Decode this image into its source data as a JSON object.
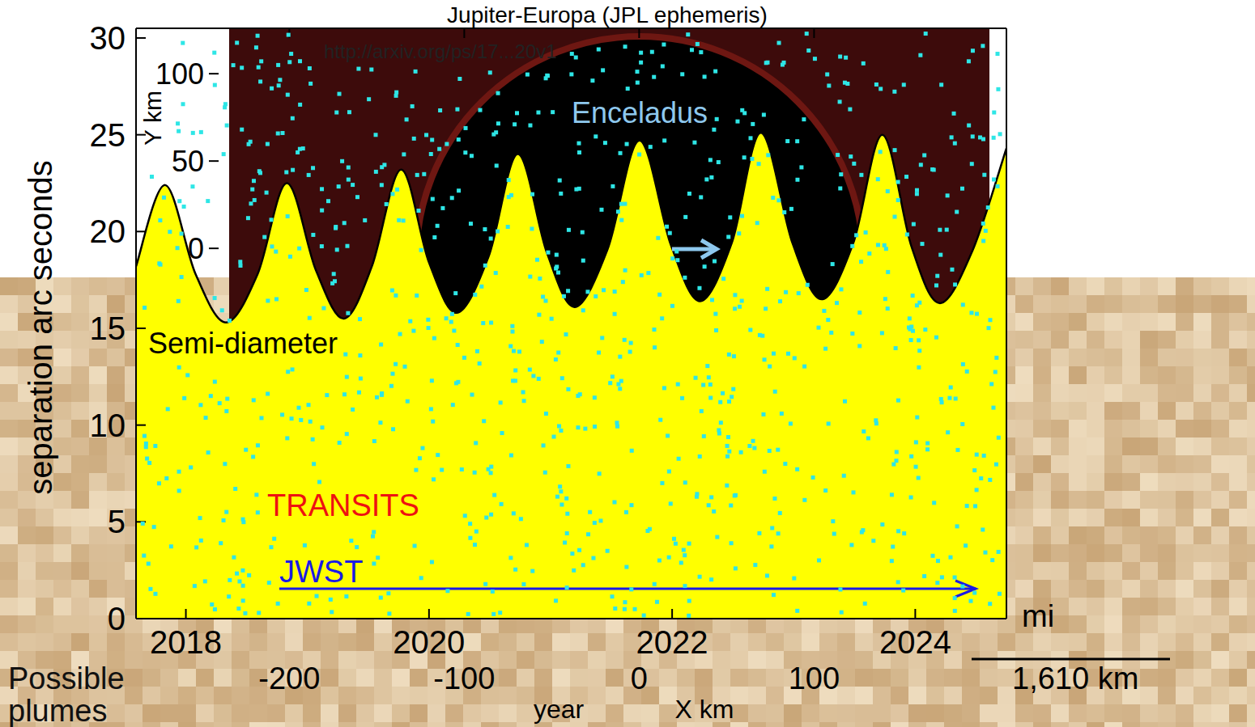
{
  "chart_data": [
    {
      "type": "area",
      "title": "Jupiter-Europa (JPL ephemeris)",
      "subtitle": "http://arxiv.org/ps/17...20v1",
      "x_label": "year",
      "y_label": "separation arc seconds",
      "x": [
        2017.59,
        2017.83,
        2018.08,
        2018.33,
        2018.59,
        2018.83,
        2019.07,
        2019.3,
        2019.53,
        2019.77,
        2020.0,
        2020.23,
        2020.49,
        2020.73,
        2020.97,
        2021.2,
        2021.47,
        2021.73,
        2021.99,
        2022.23,
        2022.49,
        2022.73,
        2022.99,
        2023.23,
        2023.49,
        2023.73,
        2023.97,
        2024.2,
        2024.47,
        2024.75
      ],
      "values": [
        18.2,
        22.4,
        17.8,
        15.3,
        17.8,
        22.5,
        18.0,
        15.5,
        18.2,
        23.2,
        18.4,
        15.8,
        18.7,
        24.0,
        18.9,
        16.1,
        19.1,
        24.7,
        19.3,
        16.4,
        19.4,
        25.1,
        19.4,
        16.5,
        19.4,
        25.0,
        19.2,
        16.3,
        19.0,
        24.3
      ],
      "color": "#ffff00",
      "xlim": [
        2017.59,
        2024.75
      ],
      "xticks": [
        2018,
        2020,
        2022,
        2024
      ],
      "ylim": [
        0,
        30.5
      ],
      "yticks": [
        0,
        5,
        10,
        15,
        20,
        25,
        30
      ],
      "annotations": [
        "Semi-diameter",
        "TRANSITS",
        "JWST"
      ]
    },
    {
      "type": "image",
      "title": "Enceladus",
      "x_label": "X km",
      "y_label": "Y km",
      "xlim": [
        -246,
        210
      ],
      "xticks": [
        -200,
        -100,
        0,
        100
      ],
      "ylim": [
        -212,
        126
      ],
      "yticks": [
        0,
        50,
        100
      ],
      "annotations": [
        "Possible plumes",
        "mi",
        "1,610 km"
      ]
    }
  ]
}
